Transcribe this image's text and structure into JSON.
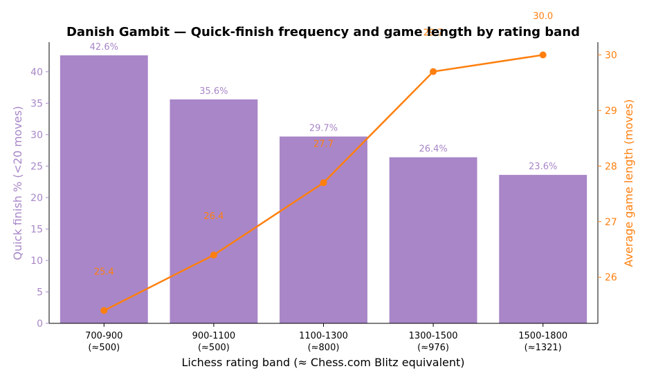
{
  "chart_data": {
    "type": "bar",
    "title": "Danish Gambit — Quick-finish frequency and game length by rating band",
    "xlabel": "Lichess rating band  (≈ Chess.com Blitz equivalent)",
    "ylabel": "Quick finish % (<20 moves)",
    "y2label": "Average game length (moves)",
    "categories": [
      "700-900",
      "900-1100",
      "1100-1300",
      "1300-1500",
      "1500-1800"
    ],
    "category_sublabels": [
      "(≈500)",
      "(≈500)",
      "(≈800)",
      "(≈976)",
      "(≈1321)"
    ],
    "ylim": [
      0,
      44.7
    ],
    "y2lim": [
      25.17,
      30.23
    ],
    "yticks": [
      0,
      5,
      10,
      15,
      20,
      25,
      30,
      35,
      40
    ],
    "y2ticks": [
      26,
      27,
      28,
      29,
      30
    ],
    "series": [
      {
        "kind": "bar",
        "axis": "left",
        "color": "#a886c8",
        "values": [
          42.6,
          35.6,
          29.7,
          26.4,
          23.6
        ],
        "labels": [
          "42.6%",
          "35.6%",
          "29.7%",
          "26.4%",
          "23.6%"
        ]
      },
      {
        "kind": "line",
        "axis": "right",
        "color": "#ff7f0e",
        "values": [
          25.4,
          26.4,
          27.7,
          29.7,
          30.0
        ],
        "labels": [
          "25.4",
          "26.4",
          "27.7",
          "29.7",
          "30.0"
        ]
      }
    ],
    "grid": false
  }
}
